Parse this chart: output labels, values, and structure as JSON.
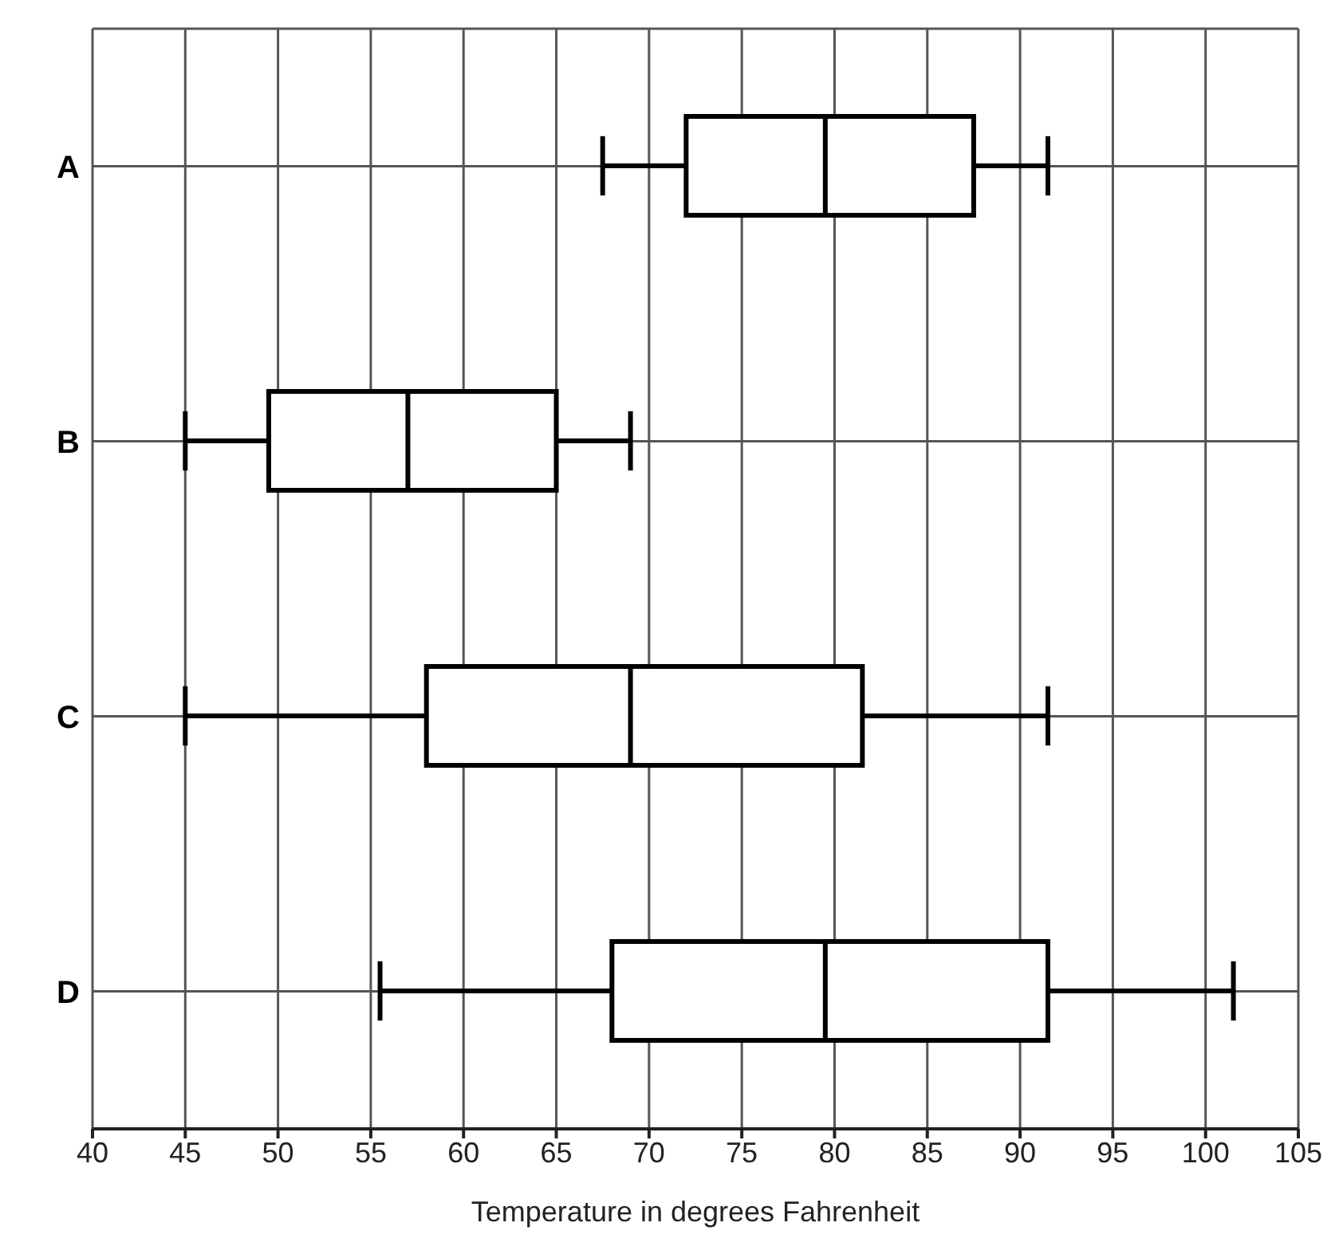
{
  "chart_data": {
    "type": "box",
    "orientation": "horizontal",
    "xlabel": "Temperature in degrees Fahrenheit",
    "categories": [
      "A",
      "B",
      "C",
      "D"
    ],
    "boxes": [
      {
        "low": 67.5,
        "q1": 72,
        "median": 79.5,
        "q3": 87.5,
        "high": 91.5
      },
      {
        "low": 45,
        "q1": 49.5,
        "median": 57,
        "q3": 65,
        "high": 69
      },
      {
        "low": 45,
        "q1": 58,
        "median": 69,
        "q3": 81.5,
        "high": 91.5
      },
      {
        "low": 55.5,
        "q1": 68,
        "median": 79.5,
        "q3": 91.5,
        "high": 101.5
      }
    ],
    "xlim": [
      40,
      105
    ],
    "xticks": [
      40,
      45,
      50,
      55,
      60,
      65,
      70,
      75,
      80,
      85,
      90,
      95,
      100,
      105
    ],
    "grid": true
  }
}
